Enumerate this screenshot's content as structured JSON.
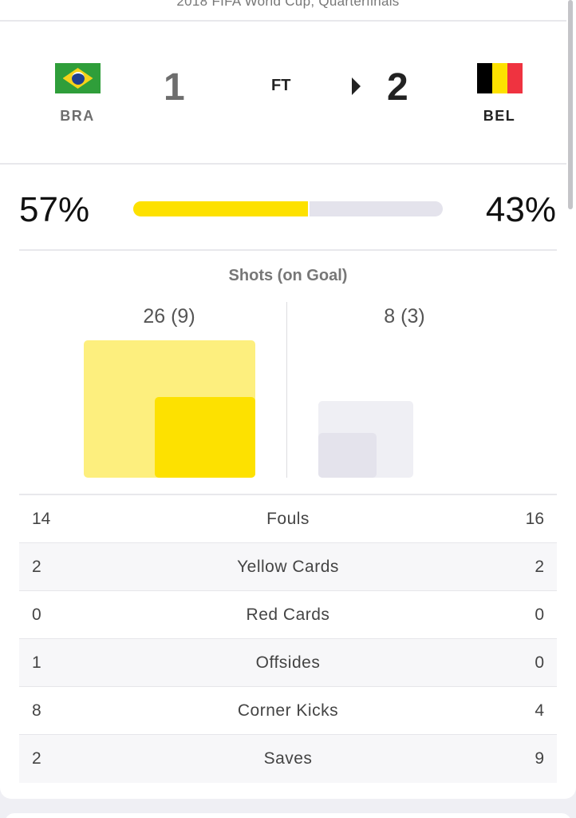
{
  "competition": "2018 FIFA World Cup, Quarterfinals",
  "match": {
    "status": "FT",
    "home": {
      "abbr": "BRA",
      "score": "1",
      "flag_colors": [
        "#2f9e3a",
        "#f6d21a",
        "#1f3f8f"
      ]
    },
    "away": {
      "abbr": "BEL",
      "score": "2",
      "flag_colors": [
        "#000000",
        "#fde100",
        "#ef3340"
      ]
    },
    "winner": "away"
  },
  "possession": {
    "home": "57%",
    "away": "43%",
    "home_fraction": 0.57
  },
  "shots": {
    "title": "Shots (on Goal)",
    "home_label": "26 (9)",
    "away_label": "8 (3)",
    "home_total": 26,
    "home_on_goal": 9,
    "away_total": 8,
    "away_on_goal": 3
  },
  "stats": [
    {
      "home": "14",
      "label": "Fouls",
      "away": "16"
    },
    {
      "home": "2",
      "label": "Yellow Cards",
      "away": "2"
    },
    {
      "home": "0",
      "label": "Red Cards",
      "away": "0"
    },
    {
      "home": "1",
      "label": "Offsides",
      "away": "0"
    },
    {
      "home": "8",
      "label": "Corner Kicks",
      "away": "4"
    },
    {
      "home": "2",
      "label": "Saves",
      "away": "9"
    }
  ],
  "colors": {
    "home_accent": "#fde100",
    "home_accent_light": "#fdef7e",
    "away_accent": "#e4e3ec",
    "away_accent_light": "#efeff4"
  }
}
